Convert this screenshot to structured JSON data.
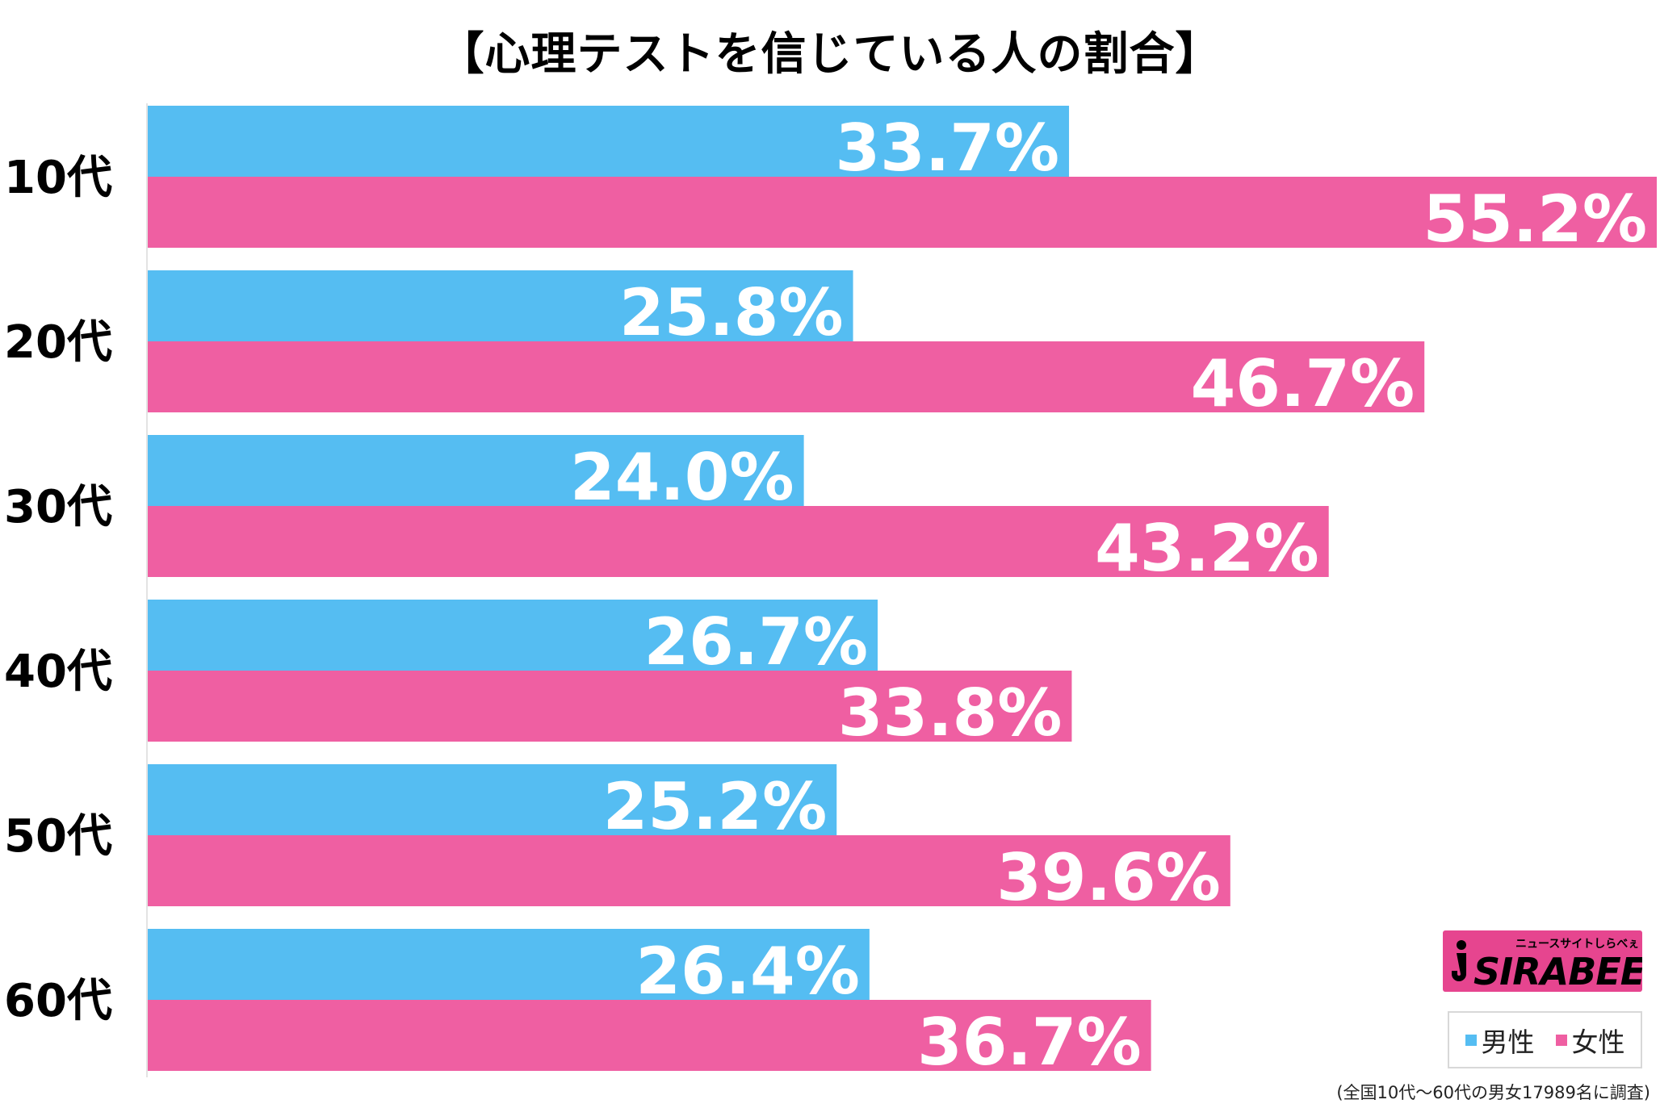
{
  "chart_data": {
    "type": "bar",
    "orientation": "horizontal",
    "title": "【心理テストを信じている人の割合】",
    "categories": [
      "10代",
      "20代",
      "30代",
      "40代",
      "50代",
      "60代"
    ],
    "series": [
      {
        "name": "男性",
        "color": "#55bdf2",
        "values": [
          33.7,
          25.8,
          24.0,
          26.7,
          25.2,
          26.4
        ],
        "labels": [
          "33.7%",
          "25.8%",
          "24.0%",
          "26.7%",
          "25.2%",
          "26.4%"
        ]
      },
      {
        "name": "女性",
        "color": "#ef5fa2",
        "values": [
          55.2,
          46.7,
          43.2,
          33.8,
          39.6,
          36.7
        ],
        "labels": [
          "55.2%",
          "46.7%",
          "43.2%",
          "33.8%",
          "39.6%",
          "36.7%"
        ]
      }
    ],
    "value_unit": "%",
    "xlim": [
      0,
      55.2
    ],
    "grid": false,
    "legend_position": "bottom-right"
  },
  "logo": {
    "tagline": "ニュースサイトしらべぇ",
    "text": "SIRABEE",
    "color": "#e6458f"
  },
  "footnote": "(全国10代〜60代の男女17989名に調査)"
}
